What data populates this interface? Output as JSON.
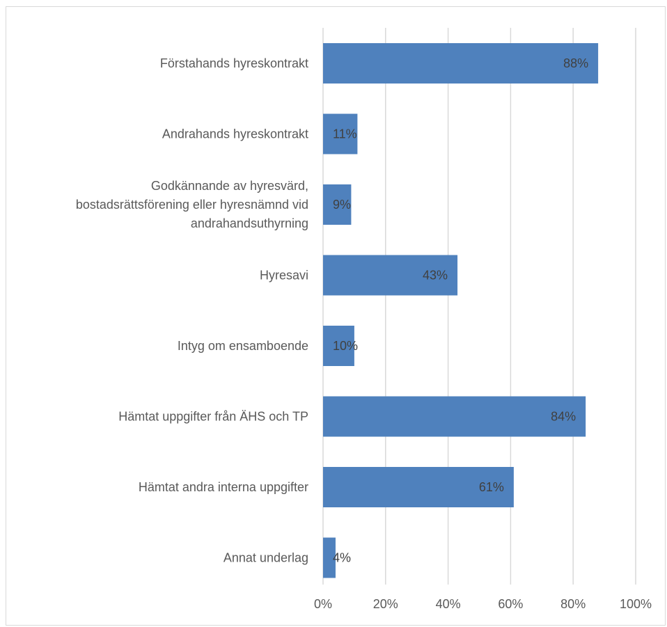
{
  "chart_data": {
    "type": "bar",
    "orientation": "horizontal",
    "categories": [
      [
        "Förstahands hyreskontrakt"
      ],
      [
        "Andrahands hyreskontrakt"
      ],
      [
        "Godkännande av hyresvärd,",
        "bostadsrättsförening eller hyresnämnd vid",
        "andrahandsuthyrning"
      ],
      [
        "Hyresavi"
      ],
      [
        "Intyg om ensamboende"
      ],
      [
        "Hämtat uppgifter från ÄHS och TP"
      ],
      [
        "Hämtat andra interna uppgifter"
      ],
      [
        "Annat underlag"
      ]
    ],
    "values": [
      88,
      11,
      9,
      43,
      10,
      84,
      61,
      4
    ],
    "data_labels": [
      "88%",
      "11%",
      "9%",
      "43%",
      "10%",
      "84%",
      "61%",
      "4%"
    ],
    "xlim": [
      0,
      100
    ],
    "x_ticks": [
      "0%",
      "20%",
      "40%",
      "60%",
      "80%",
      "100%"
    ],
    "grid": "vertical",
    "legend": "none",
    "colors": {
      "bar": "#4f81bd",
      "grid": "#d9d9d9",
      "border": "#d9d9d9"
    }
  }
}
